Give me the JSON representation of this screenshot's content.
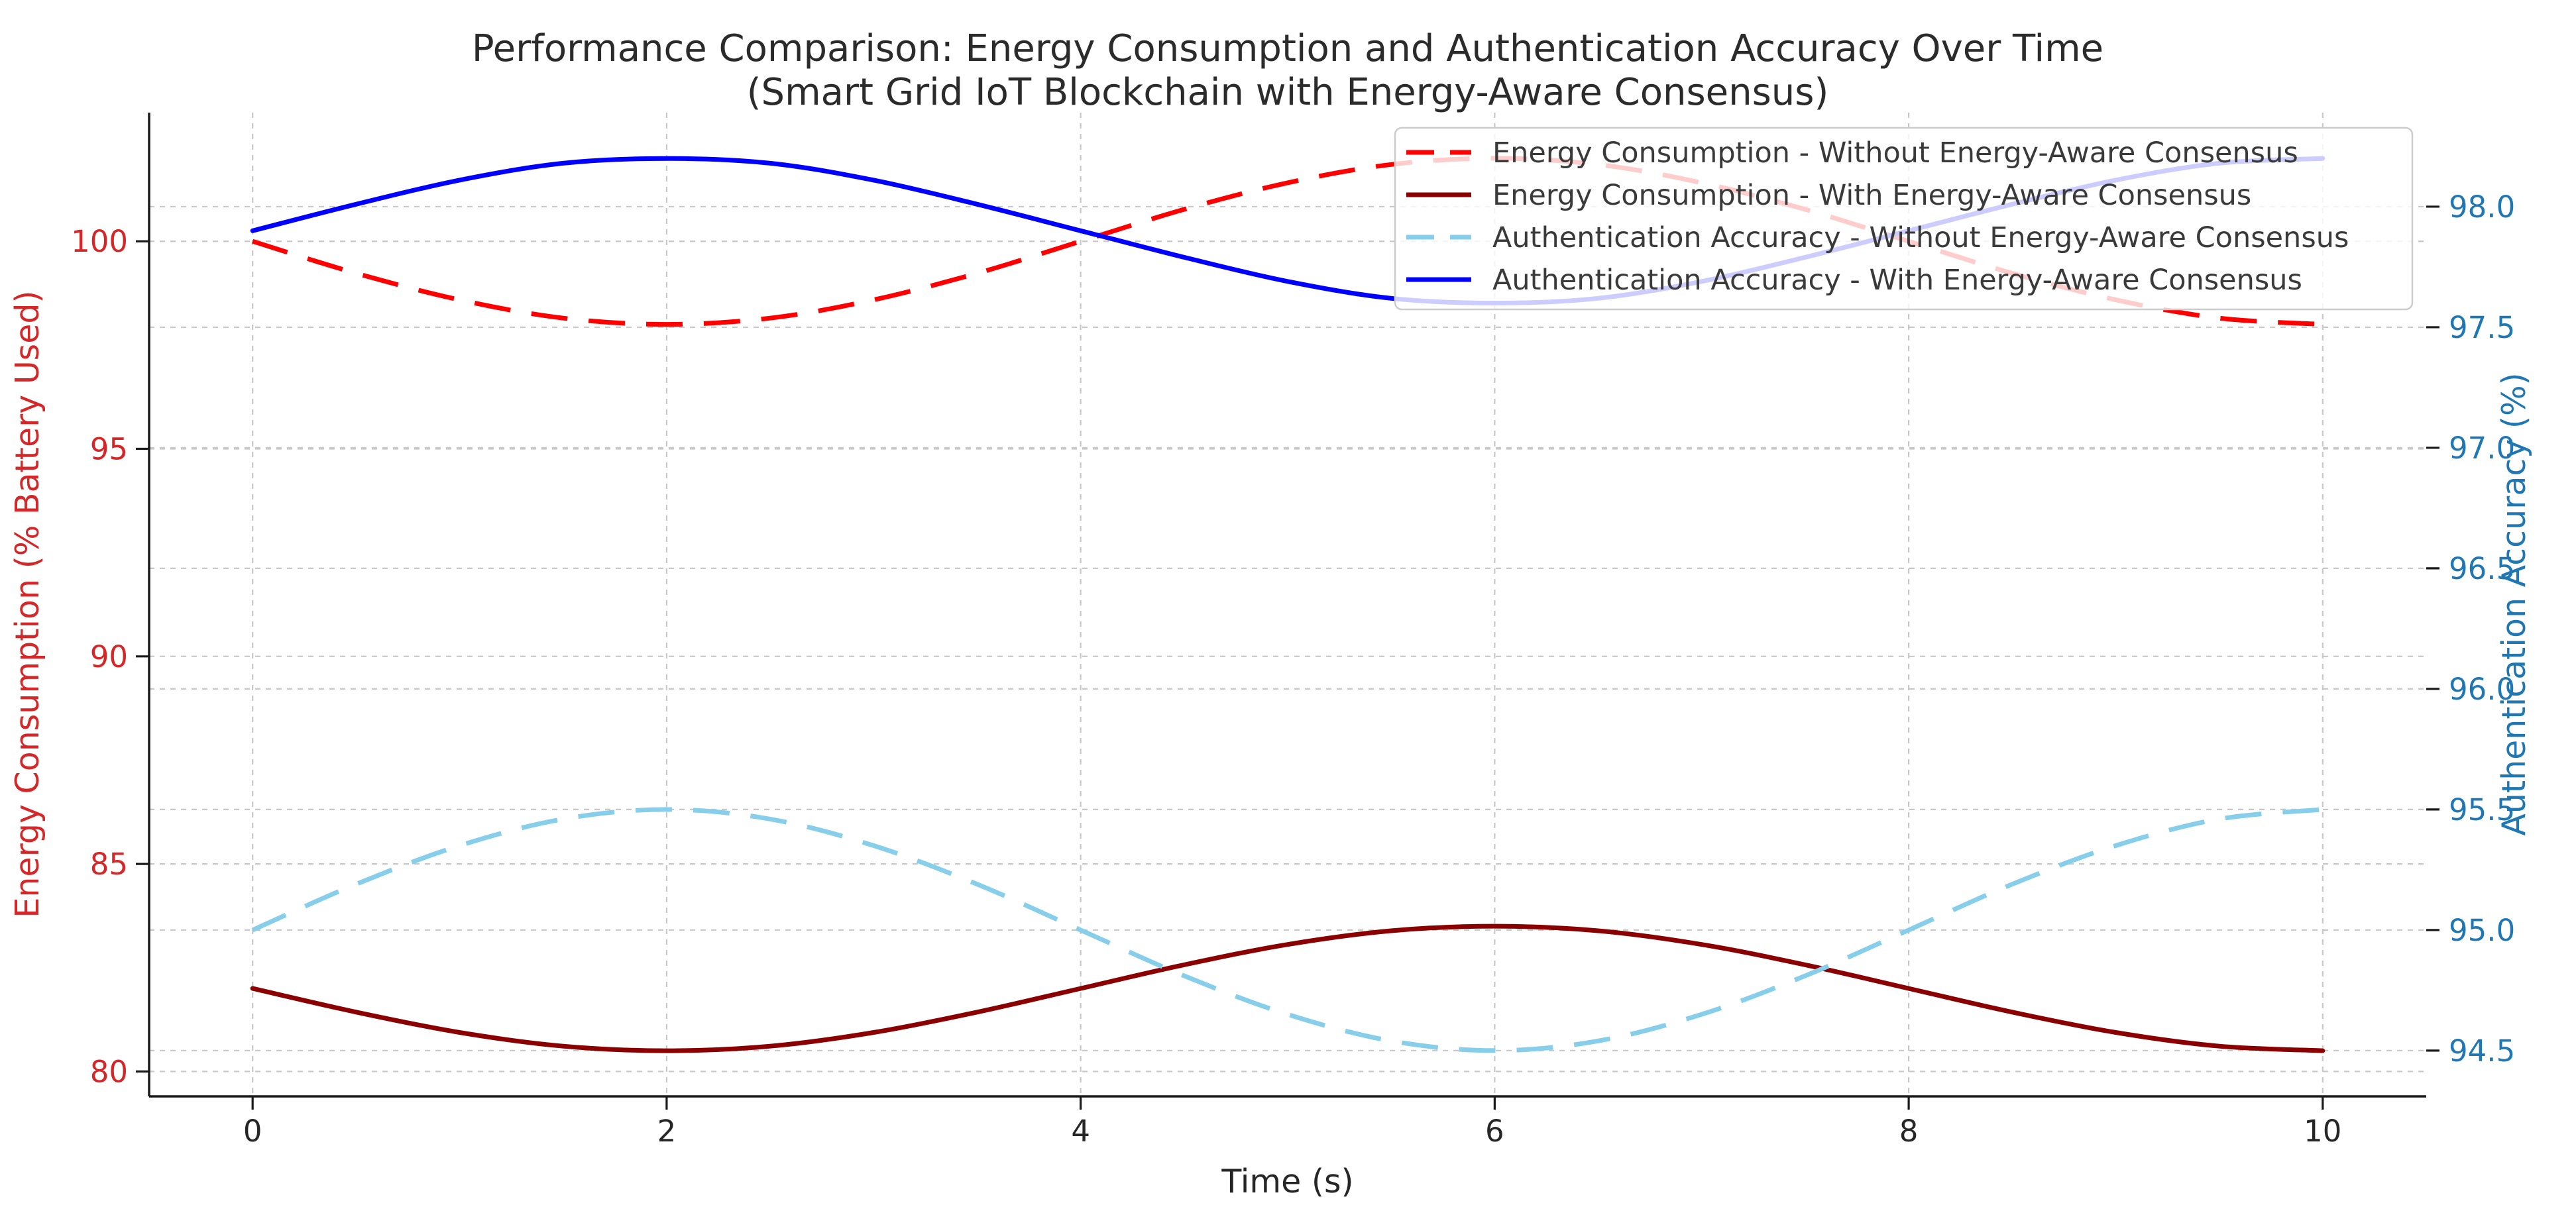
{
  "chart_data": {
    "type": "line",
    "title": "Performance Comparison: Energy Consumption and Authentication Accuracy Over Time",
    "subtitle": "(Smart Grid IoT Blockchain with Energy-Aware Consensus)",
    "title_color": "#2b2b2b",
    "xlabel": "Time (s)",
    "xlim": [
      -0.5,
      10.5
    ],
    "x_ticks": [
      0,
      2,
      4,
      6,
      8,
      10
    ],
    "x_tick_labels": [
      "0",
      "2",
      "4",
      "6",
      "8",
      "10"
    ],
    "x_tick_color": "#262626",
    "grid": {
      "on": true,
      "color": "#c8c8c8",
      "style": "dashed"
    },
    "x": [
      0,
      0.5,
      1,
      1.5,
      2,
      2.5,
      3,
      3.5,
      4,
      4.5,
      5,
      5.5,
      6,
      6.5,
      7,
      7.5,
      8,
      8.5,
      9,
      9.5,
      10
    ],
    "axes": {
      "left": {
        "ylabel": "Energy Consumption (% Battery Used)",
        "ylim": [
          79.4,
          103.1
        ],
        "ticks": [
          80,
          85,
          90,
          95,
          100
        ],
        "tick_labels": [
          "80",
          "85",
          "90",
          "95",
          "100"
        ],
        "color": "#d62728"
      },
      "right": {
        "ylabel": "Authentication Accuracy (%)",
        "ylim": [
          94.31,
          98.39
        ],
        "ticks": [
          94.5,
          95.0,
          95.5,
          96.0,
          96.5,
          97.0,
          97.5,
          98.0
        ],
        "tick_labels": [
          "94.5",
          "95.0",
          "95.5",
          "96.0",
          "96.5",
          "97.0",
          "97.5",
          "98.0"
        ],
        "color": "#1f77b4"
      }
    },
    "legend": {
      "position": "upper right inside plot",
      "background": "rgba(255,255,255,0.8)",
      "border_color": "#cccccc"
    },
    "series": [
      {
        "name": "Energy Consumption - Without Energy-Aware Consensus",
        "axis": "left",
        "color": "#ff0000",
        "line_style": "dashed",
        "line_width": 7,
        "values": [
          100,
          99.23,
          98.59,
          98.15,
          98.0,
          98.15,
          98.59,
          99.23,
          100,
          100.77,
          101.41,
          101.85,
          102.0,
          101.85,
          101.41,
          100.77,
          100,
          99.23,
          98.59,
          98.15,
          98.0
        ]
      },
      {
        "name": "Energy Consumption - With Energy-Aware Consensus",
        "axis": "left",
        "color": "#8b0000",
        "line_style": "solid",
        "line_width": 7,
        "values": [
          82,
          81.43,
          80.94,
          80.61,
          80.5,
          80.61,
          80.94,
          81.43,
          82,
          82.57,
          83.06,
          83.39,
          83.5,
          83.39,
          83.06,
          82.57,
          82,
          81.43,
          80.94,
          80.61,
          80.5
        ]
      },
      {
        "name": "Authentication Accuracy - Without Energy-Aware Consensus",
        "axis": "right",
        "color": "#87ceeb",
        "line_style": "dashed",
        "line_width": 7,
        "values": [
          95,
          95.19,
          95.35,
          95.46,
          95.5,
          95.46,
          95.35,
          95.19,
          95,
          94.81,
          94.65,
          94.54,
          94.5,
          94.54,
          94.65,
          94.81,
          95,
          95.19,
          95.35,
          95.46,
          95.5
        ]
      },
      {
        "name": "Authentication Accuracy - With Energy-Aware Consensus",
        "axis": "right",
        "color": "#0000ff",
        "line_style": "solid",
        "line_width": 7,
        "values": [
          97.9,
          98.01,
          98.11,
          98.18,
          98.2,
          98.18,
          98.11,
          98.01,
          97.9,
          97.79,
          97.69,
          97.62,
          97.6,
          97.62,
          97.69,
          97.79,
          97.9,
          98.01,
          98.11,
          98.18,
          98.2
        ]
      }
    ]
  }
}
